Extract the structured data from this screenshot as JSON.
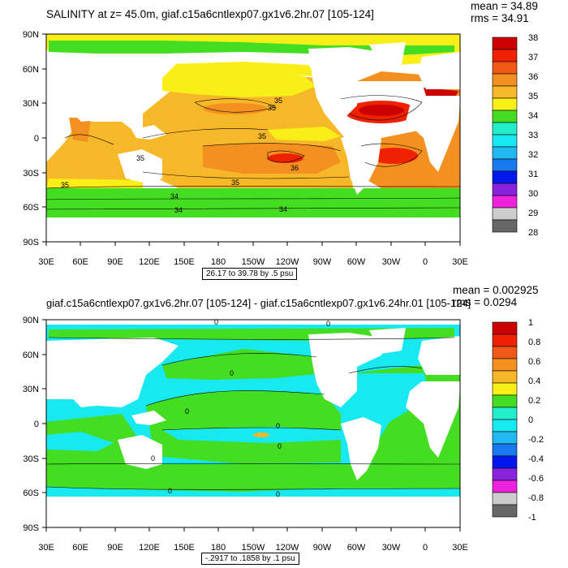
{
  "panels": [
    {
      "title": "SALINITY at z=  45.0m, giaf.c15a6cntlexp07.gx1v6.2hr.07 [105-124]",
      "mean_text": "mean = 34.89",
      "rms_text": "rms = 34.91",
      "range_text": "26.17 to 39.78 by .5 psu",
      "lat_labels": [
        "90N",
        "60N",
        "30N",
        "0",
        "30S",
        "60S",
        "90S"
      ],
      "lon_labels": [
        "30E",
        "60E",
        "90E",
        "120E",
        "150E",
        "180",
        "150W",
        "120W",
        "90W",
        "60W",
        "30W",
        "0",
        "30E"
      ],
      "colorbar": {
        "labels": [
          "38",
          "37",
          "36",
          "35",
          "34",
          "33",
          "32",
          "31",
          "30",
          "29",
          "28"
        ],
        "colors": [
          "#cc0000",
          "#ee2200",
          "#f05818",
          "#f39020",
          "#f6b828",
          "#f8ee18",
          "#44dd22",
          "#22eecc",
          "#18e8f0",
          "#22b8f0",
          "#1878ee",
          "#0018ee",
          "#8822dd",
          "#ee22dd",
          "#cccccc",
          "#666666"
        ]
      },
      "contour_labels": [
        "35",
        "35",
        "35",
        "35",
        "36",
        "35",
        "34",
        "34",
        "34",
        "35"
      ]
    },
    {
      "title": "giaf.c15a6cntlexp07.gx1v6.2hr.07 [105-124] - giaf.c15a6cntlexp07.gx1v6.24hr.01 [105-124]",
      "mean_text": "mean = 0.002925",
      "rms_text": "rms = 0.0294",
      "range_text": "-.2917 to .1858 by .1 psu",
      "lat_labels": [
        "90N",
        "60N",
        "30N",
        "0",
        "30S",
        "60S",
        "90S"
      ],
      "lon_labels": [
        "30E",
        "60E",
        "90E",
        "120E",
        "150E",
        "180",
        "150W",
        "120W",
        "90W",
        "60W",
        "30W",
        "0",
        "30E"
      ],
      "colorbar": {
        "labels": [
          "1",
          "0.8",
          "0.6",
          "0.4",
          "0.2",
          "0",
          "-0.2",
          "-0.4",
          "-0.6",
          "-0.8",
          "-1"
        ],
        "colors": [
          "#cc0000",
          "#ee2200",
          "#f05818",
          "#f39020",
          "#f6b828",
          "#f8ee18",
          "#44dd22",
          "#22eecc",
          "#18e8f0",
          "#22b8f0",
          "#1878ee",
          "#0018ee",
          "#8822dd",
          "#ee22dd",
          "#cccccc",
          "#666666"
        ]
      },
      "contour_labels": [
        "0",
        "0",
        "0",
        "0",
        "0",
        "0",
        "0",
        "0",
        "0"
      ]
    }
  ]
}
